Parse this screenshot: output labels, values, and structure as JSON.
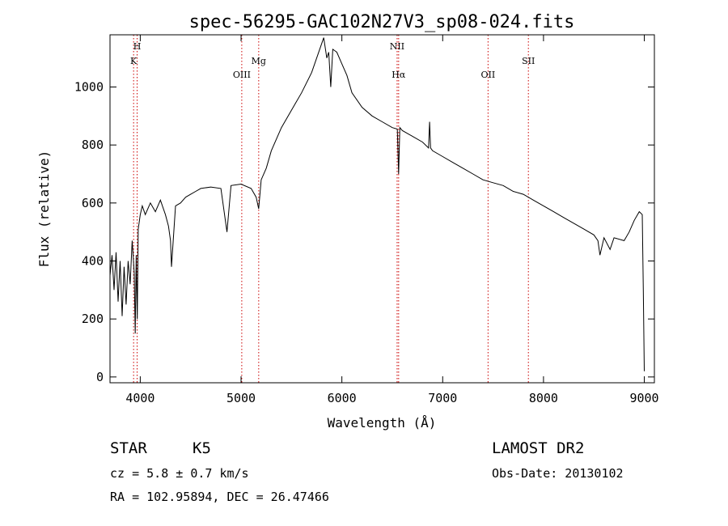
{
  "chart_data": {
    "type": "line",
    "title": "spec-56295-GAC102N27V3_sp08-024.fits",
    "xlabel": "Wavelength (Å)",
    "ylabel": "Flux (relative)",
    "xlim": [
      3700,
      9100
    ],
    "ylim": [
      -20,
      1180
    ],
    "x_ticks": [
      4000,
      5000,
      6000,
      7000,
      8000,
      9000
    ],
    "y_ticks": [
      0,
      200,
      400,
      600,
      800,
      1000
    ],
    "grid": false,
    "series": [
      {
        "x": [
          3700,
          3720,
          3740,
          3760,
          3780,
          3800,
          3820,
          3840,
          3860,
          3880,
          3900,
          3920,
          3940,
          3950,
          3960,
          3970,
          3980,
          4000,
          4020,
          4050,
          4100,
          4150,
          4200,
          4250,
          4280,
          4300,
          4310,
          4350,
          4400,
          4450,
          4500,
          4550,
          4600,
          4700,
          4800,
          4860,
          4900,
          5000,
          5100,
          5150,
          5175,
          5200,
          5250,
          5300,
          5400,
          5500,
          5600,
          5700,
          5750,
          5800,
          5820,
          5850,
          5870,
          5890,
          5910,
          5950,
          6000,
          6050,
          6100,
          6200,
          6300,
          6400,
          6500,
          6550,
          6563,
          6575,
          6600,
          6700,
          6800,
          6860,
          6870,
          6880,
          6900,
          7000,
          7100,
          7200,
          7300,
          7400,
          7500,
          7600,
          7700,
          7800,
          7900,
          8000,
          8100,
          8200,
          8300,
          8400,
          8500,
          8540,
          8560,
          8600,
          8660,
          8700,
          8800,
          8850,
          8900,
          8950,
          8980,
          8990,
          9000
        ],
        "y": [
          350,
          420,
          300,
          430,
          260,
          400,
          210,
          380,
          250,
          400,
          320,
          470,
          360,
          150,
          420,
          200,
          510,
          560,
          590,
          560,
          600,
          570,
          610,
          560,
          520,
          470,
          380,
          590,
          600,
          620,
          630,
          640,
          650,
          655,
          650,
          500,
          660,
          665,
          650,
          620,
          580,
          680,
          720,
          780,
          860,
          920,
          980,
          1050,
          1100,
          1150,
          1170,
          1100,
          1120,
          1000,
          1130,
          1120,
          1080,
          1040,
          980,
          930,
          900,
          880,
          860,
          855,
          700,
          860,
          850,
          830,
          810,
          790,
          880,
          790,
          780,
          760,
          740,
          720,
          700,
          680,
          670,
          660,
          640,
          630,
          610,
          590,
          570,
          550,
          530,
          510,
          490,
          470,
          420,
          480,
          440,
          480,
          470,
          500,
          540,
          570,
          560,
          300,
          20
        ]
      }
    ],
    "reference_lines": [
      {
        "x": 3934,
        "label": "K",
        "row": 2
      },
      {
        "x": 3969,
        "label": "H",
        "row": 1
      },
      {
        "x": 5007,
        "label": "OIII",
        "row": 3
      },
      {
        "x": 5175,
        "label": "Mg",
        "row": 2
      },
      {
        "x": 6548,
        "label": "NII",
        "row": 1
      },
      {
        "x": 6563,
        "label": "Hα",
        "row": 3
      },
      {
        "x": 7450,
        "label": "OII",
        "row": 3
      },
      {
        "x": 7850,
        "label": "SII",
        "row": 2
      }
    ]
  },
  "info": {
    "object_class": "STAR",
    "subclass": "K5",
    "cz": "cz = 5.8 ± 0.7 km/s",
    "coords": "RA = 102.95894, DEC =  26.47466",
    "survey": "LAMOST DR2",
    "obs_date": "Obs-Date: 20130102"
  },
  "colors": {
    "spectrum": "#000000",
    "reference_line": "#cc0000"
  }
}
